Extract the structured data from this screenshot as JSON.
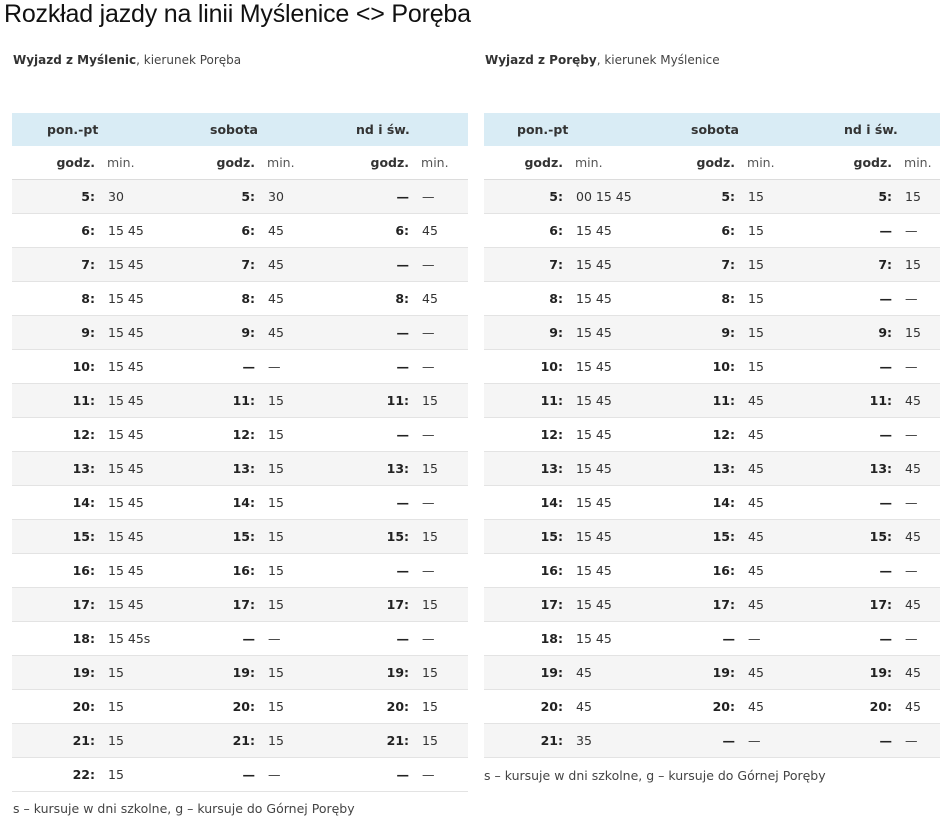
{
  "title": "Rozkład jazdy na linii Myślenice <> Poręba",
  "left": {
    "subtitle_bold": "Wyjazd z Myślenic",
    "subtitle_rest": ", kierunek Poręba",
    "headers": [
      "pon.-pt",
      "sobota",
      "nd i św."
    ],
    "sub_headers": {
      "hour": "godz.",
      "min": "min."
    },
    "rows": [
      [
        [
          "5:",
          "30"
        ],
        [
          "5:",
          "30"
        ],
        [
          "—",
          "—"
        ]
      ],
      [
        [
          "6:",
          "15 45"
        ],
        [
          "6:",
          "45"
        ],
        [
          "6:",
          "45"
        ]
      ],
      [
        [
          "7:",
          "15 45"
        ],
        [
          "7:",
          "45"
        ],
        [
          "—",
          "—"
        ]
      ],
      [
        [
          "8:",
          "15 45"
        ],
        [
          "8:",
          "45"
        ],
        [
          "8:",
          "45"
        ]
      ],
      [
        [
          "9:",
          "15 45"
        ],
        [
          "9:",
          "45"
        ],
        [
          "—",
          "—"
        ]
      ],
      [
        [
          "10:",
          "15 45"
        ],
        [
          "—",
          "—"
        ],
        [
          "—",
          "—"
        ]
      ],
      [
        [
          "11:",
          "15 45"
        ],
        [
          "11:",
          "15"
        ],
        [
          "11:",
          "15"
        ]
      ],
      [
        [
          "12:",
          "15 45"
        ],
        [
          "12:",
          "15"
        ],
        [
          "—",
          "—"
        ]
      ],
      [
        [
          "13:",
          "15 45"
        ],
        [
          "13:",
          "15"
        ],
        [
          "13:",
          "15"
        ]
      ],
      [
        [
          "14:",
          "15 45"
        ],
        [
          "14:",
          "15"
        ],
        [
          "—",
          "—"
        ]
      ],
      [
        [
          "15:",
          "15 45"
        ],
        [
          "15:",
          "15"
        ],
        [
          "15:",
          "15"
        ]
      ],
      [
        [
          "16:",
          "15 45"
        ],
        [
          "16:",
          "15"
        ],
        [
          "—",
          "—"
        ]
      ],
      [
        [
          "17:",
          "15 45"
        ],
        [
          "17:",
          "15"
        ],
        [
          "17:",
          "15"
        ]
      ],
      [
        [
          "18:",
          "15 45s"
        ],
        [
          "—",
          "—"
        ],
        [
          "—",
          "—"
        ]
      ],
      [
        [
          "19:",
          "15"
        ],
        [
          "19:",
          "15"
        ],
        [
          "19:",
          "15"
        ]
      ],
      [
        [
          "20:",
          "15"
        ],
        [
          "20:",
          "15"
        ],
        [
          "20:",
          "15"
        ]
      ],
      [
        [
          "21:",
          "15"
        ],
        [
          "21:",
          "15"
        ],
        [
          "21:",
          "15"
        ]
      ],
      [
        [
          "22:",
          "15"
        ],
        [
          "—",
          "—"
        ],
        [
          "—",
          "—"
        ]
      ]
    ],
    "footnote": "s – kursuje w dni szkolne, g – kursuje do Górnej Poręby"
  },
  "right": {
    "subtitle_bold": "Wyjazd z Poręby",
    "subtitle_rest": ", kierunek Myślenice",
    "headers": [
      "pon.-pt",
      "sobota",
      "nd i św."
    ],
    "sub_headers": {
      "hour": "godz.",
      "min": "min."
    },
    "rows": [
      [
        [
          "5:",
          "00 15 45"
        ],
        [
          "5:",
          "15"
        ],
        [
          "5:",
          "15"
        ]
      ],
      [
        [
          "6:",
          "15 45"
        ],
        [
          "6:",
          "15"
        ],
        [
          "—",
          "—"
        ]
      ],
      [
        [
          "7:",
          "15 45"
        ],
        [
          "7:",
          "15"
        ],
        [
          "7:",
          "15"
        ]
      ],
      [
        [
          "8:",
          "15 45"
        ],
        [
          "8:",
          "15"
        ],
        [
          "—",
          "—"
        ]
      ],
      [
        [
          "9:",
          "15 45"
        ],
        [
          "9:",
          "15"
        ],
        [
          "9:",
          "15"
        ]
      ],
      [
        [
          "10:",
          "15 45"
        ],
        [
          "10:",
          "15"
        ],
        [
          "—",
          "—"
        ]
      ],
      [
        [
          "11:",
          "15 45"
        ],
        [
          "11:",
          "45"
        ],
        [
          "11:",
          "45"
        ]
      ],
      [
        [
          "12:",
          "15 45"
        ],
        [
          "12:",
          "45"
        ],
        [
          "—",
          "—"
        ]
      ],
      [
        [
          "13:",
          "15 45"
        ],
        [
          "13:",
          "45"
        ],
        [
          "13:",
          "45"
        ]
      ],
      [
        [
          "14:",
          "15 45"
        ],
        [
          "14:",
          "45"
        ],
        [
          "—",
          "—"
        ]
      ],
      [
        [
          "15:",
          "15 45"
        ],
        [
          "15:",
          "45"
        ],
        [
          "15:",
          "45"
        ]
      ],
      [
        [
          "16:",
          "15 45"
        ],
        [
          "16:",
          "45"
        ],
        [
          "—",
          "—"
        ]
      ],
      [
        [
          "17:",
          "15 45"
        ],
        [
          "17:",
          "45"
        ],
        [
          "17:",
          "45"
        ]
      ],
      [
        [
          "18:",
          "15 45"
        ],
        [
          "—",
          "—"
        ],
        [
          "—",
          "—"
        ]
      ],
      [
        [
          "19:",
          "45"
        ],
        [
          "19:",
          "45"
        ],
        [
          "19:",
          "45"
        ]
      ],
      [
        [
          "20:",
          "45"
        ],
        [
          "20:",
          "45"
        ],
        [
          "20:",
          "45"
        ]
      ],
      [
        [
          "21:",
          "35"
        ],
        [
          "—",
          "—"
        ],
        [
          "—",
          "—"
        ]
      ]
    ],
    "footnote": "s – kursuje w dni szkolne, g – kursuje do Górnej Poręby"
  }
}
